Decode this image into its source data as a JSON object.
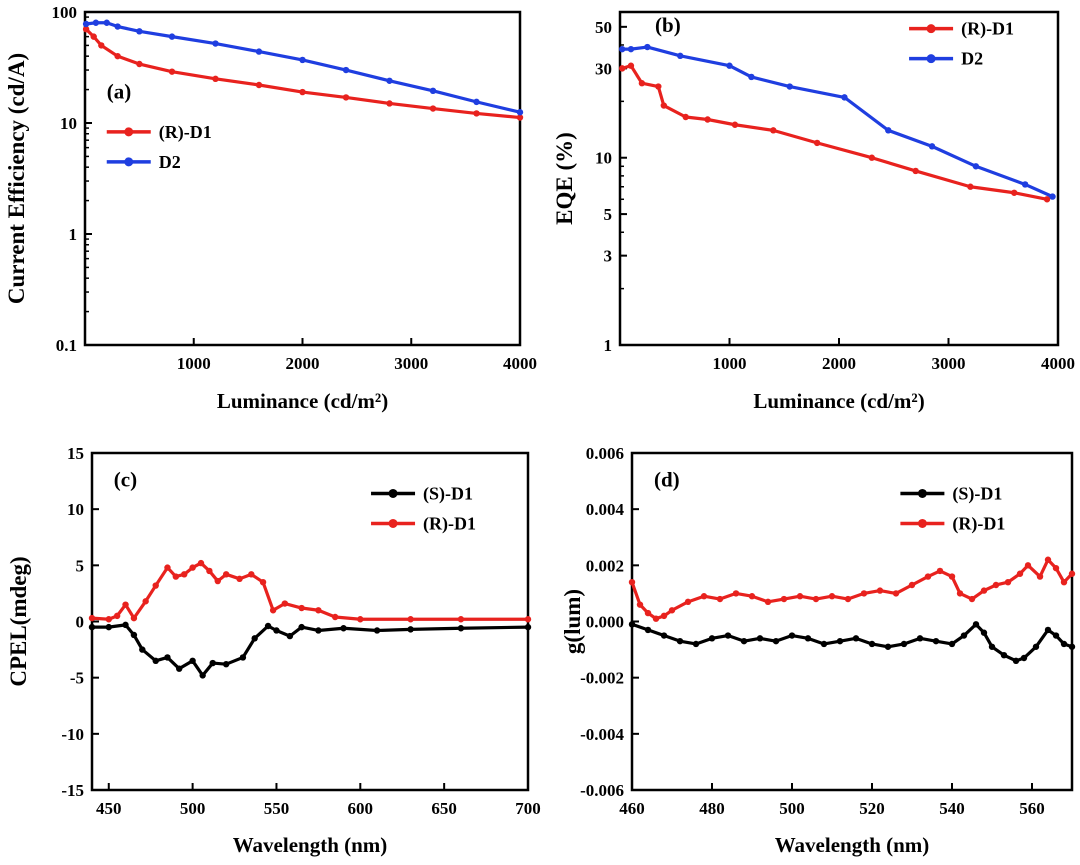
{
  "chart_data": [
    {
      "panel": "(a)",
      "type": "line",
      "xlabel": "Luminance (cd/m²)",
      "ylabel": "Current Efficiency (cd/A)",
      "xlim": [
        0,
        4000
      ],
      "ylim": [
        0.1,
        100
      ],
      "yscale": "log",
      "xticks": [
        1000,
        2000,
        3000,
        4000
      ],
      "yticks": [
        0.1,
        1,
        10,
        100
      ],
      "legend_position": "left-middle",
      "series": [
        {
          "name": "(R)-D1",
          "color": "#e8221e",
          "x": [
            10,
            80,
            150,
            300,
            500,
            800,
            1200,
            1600,
            2000,
            2400,
            2800,
            3200,
            3600,
            4000
          ],
          "y": [
            70,
            60,
            50,
            40,
            34,
            29,
            25,
            22,
            19,
            17,
            15,
            13.5,
            12.2,
            11.2
          ]
        },
        {
          "name": "D2",
          "color": "#1f3ee0",
          "x": [
            10,
            100,
            200,
            300,
            500,
            800,
            1200,
            1600,
            2000,
            2400,
            2800,
            3200,
            3600,
            4000
          ],
          "y": [
            78,
            80,
            80,
            74,
            67,
            60,
            52,
            44,
            37,
            30,
            24,
            19.5,
            15.5,
            12.5
          ]
        }
      ]
    },
    {
      "panel": "(b)",
      "type": "line",
      "xlabel": "Luminance (cd/m²)",
      "ylabel": "EQE (%)",
      "xlim": [
        0,
        4000
      ],
      "ylim": [
        1,
        60
      ],
      "yscale": "log",
      "xticks": [
        1000,
        2000,
        3000,
        4000
      ],
      "yticks": [
        1,
        3,
        5,
        10,
        30,
        50
      ],
      "legend_position": "top-right",
      "series": [
        {
          "name": "(R)-D1",
          "color": "#e8221e",
          "x": [
            20,
            100,
            200,
            350,
            400,
            600,
            800,
            1050,
            1400,
            1800,
            2300,
            2700,
            3200,
            3600,
            3900
          ],
          "y": [
            30,
            31,
            25,
            24,
            19,
            16.5,
            16,
            15,
            14,
            12,
            10,
            8.5,
            7,
            6.5,
            6
          ]
        },
        {
          "name": "D2",
          "color": "#1f3ee0",
          "x": [
            20,
            100,
            250,
            550,
            1000,
            1200,
            1550,
            2050,
            2450,
            2850,
            3250,
            3700,
            3950
          ],
          "y": [
            38,
            38,
            39,
            35,
            31,
            27,
            24,
            21,
            14,
            11.5,
            9,
            7.2,
            6.2
          ]
        }
      ]
    },
    {
      "panel": "(c)",
      "type": "line",
      "xlabel": "Wavelength (nm)",
      "ylabel": "CPEL(mdeg)",
      "xlim": [
        440,
        700
      ],
      "ylim": [
        -15,
        15
      ],
      "xticks": [
        450,
        500,
        550,
        600,
        650,
        700
      ],
      "yticks": [
        -15,
        -10,
        -5,
        0,
        5,
        10,
        15
      ],
      "legend_position": "top-right",
      "series": [
        {
          "name": "(S)-D1",
          "color": "#000000",
          "x": [
            440,
            450,
            460,
            465,
            470,
            478,
            485,
            492,
            500,
            506,
            512,
            520,
            530,
            537,
            545,
            550,
            558,
            565,
            575,
            590,
            610,
            630,
            660,
            700
          ],
          "y": [
            -0.5,
            -0.5,
            -0.3,
            -1.2,
            -2.5,
            -3.5,
            -3.2,
            -4.2,
            -3.5,
            -4.8,
            -3.7,
            -3.8,
            -3.2,
            -1.5,
            -0.4,
            -0.8,
            -1.3,
            -0.5,
            -0.8,
            -0.6,
            -0.8,
            -0.7,
            -0.6,
            -0.5
          ]
        },
        {
          "name": "(R)-D1",
          "color": "#e8221e",
          "x": [
            440,
            450,
            455,
            460,
            465,
            472,
            478,
            485,
            490,
            495,
            500,
            505,
            510,
            515,
            520,
            528,
            535,
            542,
            548,
            555,
            565,
            575,
            585,
            600,
            630,
            660,
            700
          ],
          "y": [
            0.3,
            0.2,
            0.5,
            1.5,
            0.3,
            1.8,
            3.2,
            4.8,
            4.0,
            4.2,
            4.8,
            5.2,
            4.5,
            3.6,
            4.2,
            3.8,
            4.2,
            3.5,
            1.0,
            1.6,
            1.2,
            1.0,
            0.4,
            0.2,
            0.2,
            0.2,
            0.2
          ]
        }
      ]
    },
    {
      "panel": "(d)",
      "type": "line",
      "xlabel": "Wavelength (nm)",
      "ylabel": "g(lum)",
      "xlim": [
        460,
        570
      ],
      "ylim": [
        -0.006,
        0.006
      ],
      "xticks": [
        460,
        480,
        500,
        520,
        540,
        560
      ],
      "yticks": [
        -0.006,
        -0.004,
        -0.002,
        0.0,
        0.002,
        0.004,
        0.006
      ],
      "legend_position": "top-right",
      "series": [
        {
          "name": "(S)-D1",
          "color": "#000000",
          "x": [
            460,
            464,
            468,
            472,
            476,
            480,
            484,
            488,
            492,
            496,
            500,
            504,
            508,
            512,
            516,
            520,
            524,
            528,
            532,
            536,
            540,
            543,
            546,
            548,
            550,
            553,
            556,
            558,
            561,
            564,
            566,
            568,
            570
          ],
          "y": [
            -0.0001,
            -0.0003,
            -0.0005,
            -0.0007,
            -0.0008,
            -0.0006,
            -0.0005,
            -0.0007,
            -0.0006,
            -0.0007,
            -0.0005,
            -0.0006,
            -0.0008,
            -0.0007,
            -0.0006,
            -0.0008,
            -0.0009,
            -0.0008,
            -0.0006,
            -0.0007,
            -0.0008,
            -0.0005,
            -0.0001,
            -0.0004,
            -0.0009,
            -0.0012,
            -0.0014,
            -0.0013,
            -0.0009,
            -0.0003,
            -0.0005,
            -0.0008,
            -0.0009
          ]
        },
        {
          "name": "(R)-D1",
          "color": "#e8221e",
          "x": [
            460,
            462,
            464,
            466,
            468,
            470,
            474,
            478,
            482,
            486,
            490,
            494,
            498,
            502,
            506,
            510,
            514,
            518,
            522,
            526,
            530,
            534,
            537,
            540,
            542,
            545,
            548,
            551,
            554,
            557,
            559,
            562,
            564,
            566,
            568,
            570
          ],
          "y": [
            0.0014,
            0.0006,
            0.0003,
            0.0001,
            0.0002,
            0.0004,
            0.0007,
            0.0009,
            0.0008,
            0.001,
            0.0009,
            0.0007,
            0.0008,
            0.0009,
            0.0008,
            0.0009,
            0.0008,
            0.001,
            0.0011,
            0.001,
            0.0013,
            0.0016,
            0.0018,
            0.0016,
            0.001,
            0.0008,
            0.0011,
            0.0013,
            0.0014,
            0.0017,
            0.002,
            0.0016,
            0.0022,
            0.0019,
            0.0014,
            0.0017
          ]
        }
      ]
    }
  ]
}
